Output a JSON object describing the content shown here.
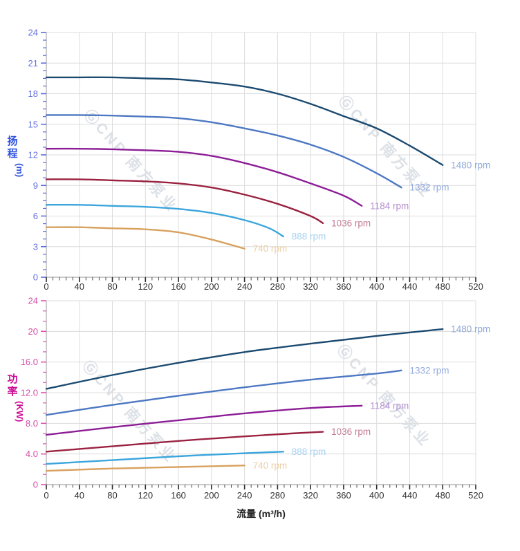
{
  "watermark": {
    "text": "ⒼCNP 南方泵业",
    "color": "#b9c3cf"
  },
  "x_axis_title": "流量 (m³/h)",
  "chart_data": [
    {
      "type": "line",
      "name": "head-chart",
      "title": "",
      "xlabel": "流量 (m³/h)",
      "ylabel": "扬程 (m)",
      "ylabel_chars": [
        "扬",
        "程"
      ],
      "ylabel_unit": "(m)",
      "ylabel_color": "#2b50dd",
      "ytick_color": "#5b6ade",
      "ytick_label_color": "#6471e0",
      "xtick_label_color": "#303030",
      "xlim": [
        0,
        520
      ],
      "ylim": [
        0,
        24
      ],
      "x_major": 40,
      "x_minor_divisions": 5,
      "y_major": 3,
      "y_minor_divisions": 4,
      "grid": true,
      "x_tick_labels": [
        "0",
        "40",
        "80",
        "120",
        "160",
        "200",
        "240",
        "280",
        "320",
        "360",
        "400",
        "440",
        "480",
        "520"
      ],
      "y_tick_labels": [
        "0",
        "3",
        "6",
        "9",
        "12",
        "15",
        "18",
        "21",
        "24"
      ],
      "legend_position": "end-of-line-labels",
      "series": [
        {
          "name": "1480 rpm",
          "color": "#1b4a70",
          "label_color": "#8fa9d9",
          "points": [
            [
              0,
              19.6
            ],
            [
              40,
              19.6
            ],
            [
              80,
              19.6
            ],
            [
              120,
              19.5
            ],
            [
              160,
              19.4
            ],
            [
              200,
              19.1
            ],
            [
              240,
              18.7
            ],
            [
              280,
              18.0
            ],
            [
              320,
              17.0
            ],
            [
              360,
              15.8
            ],
            [
              400,
              14.6
            ],
            [
              440,
              12.9
            ],
            [
              480,
              11.0
            ]
          ]
        },
        {
          "name": "1332 rpm",
          "color": "#4d78c2",
          "label_color": "#93abdf",
          "points": [
            [
              0,
              15.9
            ],
            [
              40,
              15.9
            ],
            [
              80,
              15.85
            ],
            [
              120,
              15.75
            ],
            [
              160,
              15.6
            ],
            [
              200,
              15.2
            ],
            [
              240,
              14.6
            ],
            [
              280,
              13.9
            ],
            [
              320,
              13.0
            ],
            [
              360,
              11.8
            ],
            [
              400,
              10.2
            ],
            [
              430,
              8.8
            ]
          ]
        },
        {
          "name": "1184 rpm",
          "color": "#8c1d96",
          "label_color": "#b48cd0",
          "points": [
            [
              0,
              12.6
            ],
            [
              40,
              12.6
            ],
            [
              80,
              12.55
            ],
            [
              120,
              12.45
            ],
            [
              160,
              12.3
            ],
            [
              200,
              11.9
            ],
            [
              240,
              11.2
            ],
            [
              280,
              10.3
            ],
            [
              320,
              9.2
            ],
            [
              360,
              8.0
            ],
            [
              382,
              7.0
            ]
          ]
        },
        {
          "name": "1036 rpm",
          "color": "#9a2240",
          "label_color": "#c27b96",
          "points": [
            [
              0,
              9.6
            ],
            [
              40,
              9.6
            ],
            [
              80,
              9.5
            ],
            [
              120,
              9.4
            ],
            [
              160,
              9.2
            ],
            [
              200,
              8.8
            ],
            [
              240,
              8.1
            ],
            [
              280,
              7.2
            ],
            [
              320,
              6.0
            ],
            [
              335,
              5.3
            ]
          ]
        },
        {
          "name": "888 rpm",
          "color": "#3ba5dc",
          "label_color": "#a5d2f0",
          "points": [
            [
              0,
              7.1
            ],
            [
              40,
              7.1
            ],
            [
              80,
              7.0
            ],
            [
              120,
              6.9
            ],
            [
              160,
              6.7
            ],
            [
              200,
              6.3
            ],
            [
              240,
              5.6
            ],
            [
              270,
              4.8
            ],
            [
              287,
              4.0
            ]
          ]
        },
        {
          "name": "740 rpm",
          "color": "#d8a15e",
          "label_color": "#ead0a8",
          "points": [
            [
              0,
              4.9
            ],
            [
              40,
              4.9
            ],
            [
              80,
              4.8
            ],
            [
              120,
              4.7
            ],
            [
              160,
              4.4
            ],
            [
              200,
              3.7
            ],
            [
              240,
              2.8
            ]
          ]
        }
      ]
    },
    {
      "type": "line",
      "name": "power-chart",
      "title": "",
      "xlabel": "流量 (m³/h)",
      "ylabel": "功率 (KW)",
      "ylabel_chars": [
        "功",
        "率"
      ],
      "ylabel_unit": "(KW)",
      "ylabel_color": "#cc0a96",
      "ytick_color": "#e54fb2",
      "ytick_label_color": "#d44fa8",
      "xtick_label_color": "#303030",
      "xlim": [
        0,
        520
      ],
      "ylim": [
        0,
        24
      ],
      "x_major": 40,
      "x_minor_divisions": 5,
      "y_major": 4,
      "y_minor_divisions": 3,
      "grid": true,
      "x_tick_labels": [
        "0",
        "40",
        "80",
        "120",
        "160",
        "200",
        "240",
        "280",
        "320",
        "360",
        "400",
        "440",
        "480",
        "520"
      ],
      "y_tick_labels": [
        "0",
        "4.0",
        "8.0",
        "12.0",
        "16.0",
        "20",
        "24"
      ],
      "legend_position": "end-of-line-labels",
      "series": [
        {
          "name": "1480 rpm",
          "color": "#1b4a70",
          "label_color": "#8fa9d9",
          "points": [
            [
              0,
              12.5
            ],
            [
              80,
              14.3
            ],
            [
              160,
              15.9
            ],
            [
              240,
              17.3
            ],
            [
              320,
              18.4
            ],
            [
              400,
              19.4
            ],
            [
              480,
              20.3
            ]
          ]
        },
        {
          "name": "1332 rpm",
          "color": "#4d78c2",
          "label_color": "#93abdf",
          "points": [
            [
              0,
              9.1
            ],
            [
              80,
              10.4
            ],
            [
              160,
              11.6
            ],
            [
              240,
              12.7
            ],
            [
              320,
              13.7
            ],
            [
              400,
              14.5
            ],
            [
              430,
              14.9
            ]
          ]
        },
        {
          "name": "1184 rpm",
          "color": "#8c1d96",
          "label_color": "#b48cd0",
          "points": [
            [
              0,
              6.5
            ],
            [
              80,
              7.5
            ],
            [
              160,
              8.4
            ],
            [
              240,
              9.3
            ],
            [
              320,
              10.0
            ],
            [
              382,
              10.3
            ]
          ]
        },
        {
          "name": "1036 rpm",
          "color": "#9a2240",
          "label_color": "#c27b96",
          "points": [
            [
              0,
              4.3
            ],
            [
              80,
              5.0
            ],
            [
              160,
              5.7
            ],
            [
              240,
              6.3
            ],
            [
              300,
              6.7
            ],
            [
              335,
              6.9
            ]
          ]
        },
        {
          "name": "888 rpm",
          "color": "#3ba5dc",
          "label_color": "#a5d2f0",
          "points": [
            [
              0,
              2.7
            ],
            [
              80,
              3.2
            ],
            [
              160,
              3.7
            ],
            [
              240,
              4.1
            ],
            [
              287,
              4.3
            ]
          ]
        },
        {
          "name": "740 rpm",
          "color": "#d8a15e",
          "label_color": "#ead0a8",
          "points": [
            [
              0,
              1.8
            ],
            [
              80,
              2.1
            ],
            [
              160,
              2.3
            ],
            [
              240,
              2.5
            ]
          ]
        }
      ]
    }
  ]
}
